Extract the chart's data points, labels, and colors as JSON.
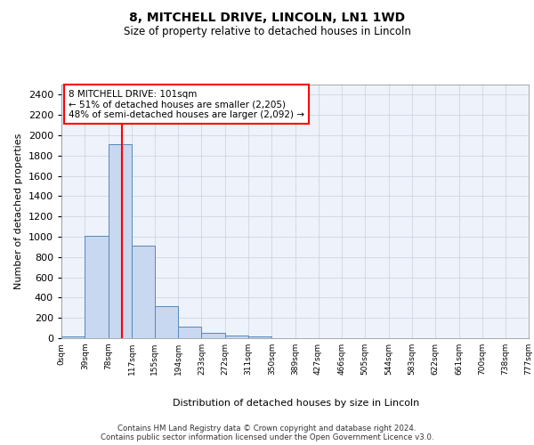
{
  "title": "8, MITCHELL DRIVE, LINCOLN, LN1 1WD",
  "subtitle": "Size of property relative to detached houses in Lincoln",
  "xlabel": "Distribution of detached houses by size in Lincoln",
  "ylabel": "Number of detached properties",
  "annotation_line1": "8 MITCHELL DRIVE: 101sqm",
  "annotation_line2": "← 51% of detached houses are smaller (2,205)",
  "annotation_line3": "48% of semi-detached houses are larger (2,092) →",
  "bar_color": "#c8d8f0",
  "bar_edge_color": "#5588bb",
  "vline_color": "red",
  "vline_x": 101,
  "bin_edges": [
    0,
    39,
    78,
    117,
    155,
    194,
    233,
    272,
    311,
    350,
    389,
    427,
    466,
    505,
    544,
    583,
    622,
    661,
    700,
    738,
    777
  ],
  "bin_counts": [
    20,
    1010,
    1910,
    910,
    320,
    110,
    50,
    25,
    20,
    0,
    0,
    0,
    0,
    0,
    0,
    0,
    0,
    0,
    0,
    0
  ],
  "ylim": [
    0,
    2500
  ],
  "yticks": [
    0,
    200,
    400,
    600,
    800,
    1000,
    1200,
    1400,
    1600,
    1800,
    2000,
    2200,
    2400
  ],
  "grid_color": "#c8d0e0",
  "bg_color": "#eef2fa",
  "footer_line1": "Contains HM Land Registry data © Crown copyright and database right 2024.",
  "footer_line2": "Contains public sector information licensed under the Open Government Licence v3.0."
}
